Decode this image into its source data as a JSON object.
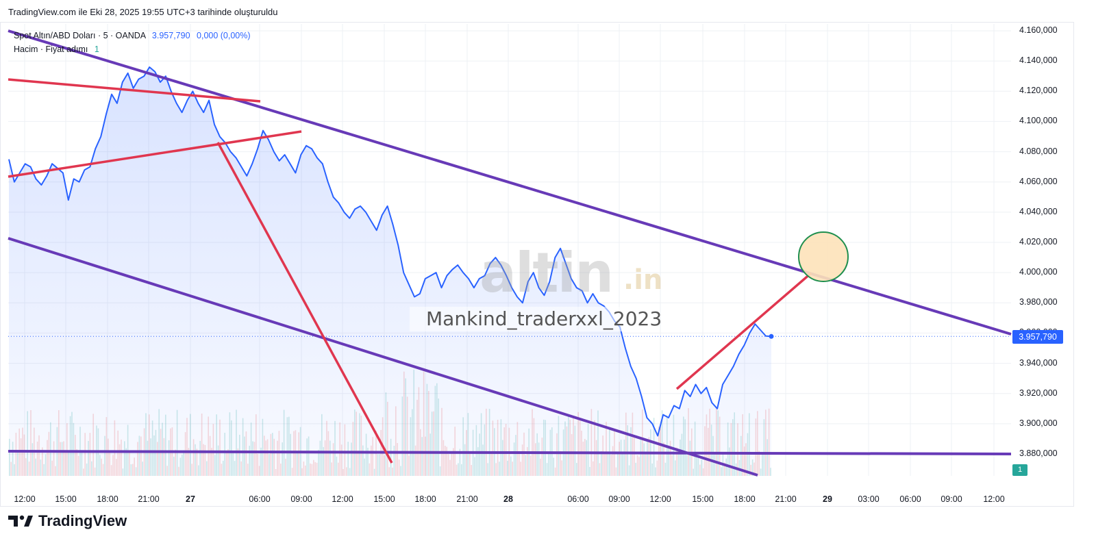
{
  "caption": "TradingView.com ile Eki 28, 2025 19:55 UTC+3 tarihinde oluşturuldu",
  "legend": {
    "symbol": "Spot Altın/ABD Doları · 5 · OANDA",
    "last_price": "3.957,790",
    "change": "0,000 (0,00%)",
    "volume_label": "Hacim · Fiyat adımı",
    "volume_value": "1"
  },
  "price_tag": "3.957,790",
  "volume_tag": "1",
  "watermark": {
    "logo": "altin",
    "suffix": ".in",
    "user": "Mankind_traderxxl_2023"
  },
  "brand": "TradingView",
  "colors": {
    "line": "#2962ff",
    "channel": "#673ab7",
    "trend": "#e0364f",
    "target_fill": "#fde2b9",
    "target_stroke": "#1f8f4e"
  },
  "chart_data": {
    "type": "line",
    "title": "",
    "ylim": [
      3860,
      4165
    ],
    "yticks": [
      "4.160,000",
      "4.140,000",
      "4.120,000",
      "4.100,000",
      "4.080,000",
      "4.060,000",
      "4.040,000",
      "4.020,000",
      "4.000,000",
      "3.980,000",
      "3.960,000",
      "3.940,000",
      "3.920,000",
      "3.900,000",
      "3.880,000"
    ],
    "ytick_values": [
      4160,
      4140,
      4120,
      4100,
      4080,
      4060,
      4040,
      4020,
      4000,
      3980,
      3960,
      3940,
      3920,
      3900,
      3880
    ],
    "xticks": [
      "12:00",
      "15:00",
      "18:00",
      "21:00",
      "27",
      "06:00",
      "09:00",
      "12:00",
      "15:00",
      "18:00",
      "21:00",
      "28",
      "06:00",
      "09:00",
      "12:00",
      "15:00",
      "18:00",
      "21:00",
      "29",
      "03:00",
      "06:00",
      "09:00",
      "12:00"
    ],
    "xticks_bold": [
      "27",
      "28",
      "29"
    ],
    "series": [
      {
        "values": [
          4075,
          4060,
          4066,
          4072,
          4070,
          4062,
          4058,
          4064,
          4072,
          4069,
          4066,
          4048,
          4062,
          4060,
          4068,
          4070,
          4082,
          4090,
          4105,
          4118,
          4112,
          4126,
          4132,
          4122,
          4128,
          4130,
          4136,
          4133,
          4126,
          4130,
          4120,
          4112,
          4106,
          4114,
          4120,
          4112,
          4106,
          4114,
          4098,
          4090,
          4086,
          4080,
          4076,
          4070,
          4064,
          4072,
          4082,
          4094,
          4088,
          4080,
          4074,
          4078,
          4072,
          4066,
          4078,
          4084,
          4082,
          4076,
          4072,
          4060,
          4050,
          4046,
          4040,
          4036,
          4042,
          4044,
          4040,
          4034,
          4028,
          4038,
          4044,
          4032,
          4018,
          4000,
          3992,
          3984,
          3986,
          3996,
          3998,
          4000,
          3990,
          3998,
          4002,
          4005,
          4000,
          3996,
          3990,
          3996,
          3998,
          4006,
          4010,
          4005,
          3998,
          3990,
          3984,
          3980,
          3994,
          4000,
          3990,
          3985,
          3994,
          4010,
          4016,
          4006,
          3996,
          3990,
          3988,
          3980,
          3986,
          3980,
          3978,
          3974,
          3968,
          3964,
          3950,
          3938,
          3930,
          3918,
          3904,
          3900,
          3892,
          3906,
          3904,
          3912,
          3910,
          3922,
          3918,
          3926,
          3920,
          3924,
          3914,
          3910,
          3926,
          3932,
          3938,
          3946,
          3952,
          3960,
          3966,
          3962,
          3958,
          3957.79
        ]
      }
    ],
    "last_price": 3957.79,
    "drawings": {
      "channel_upper": [
        [
          4160,
          3961
        ]
      ],
      "horizontal_support": 3881,
      "target_zone": 4010
    }
  }
}
